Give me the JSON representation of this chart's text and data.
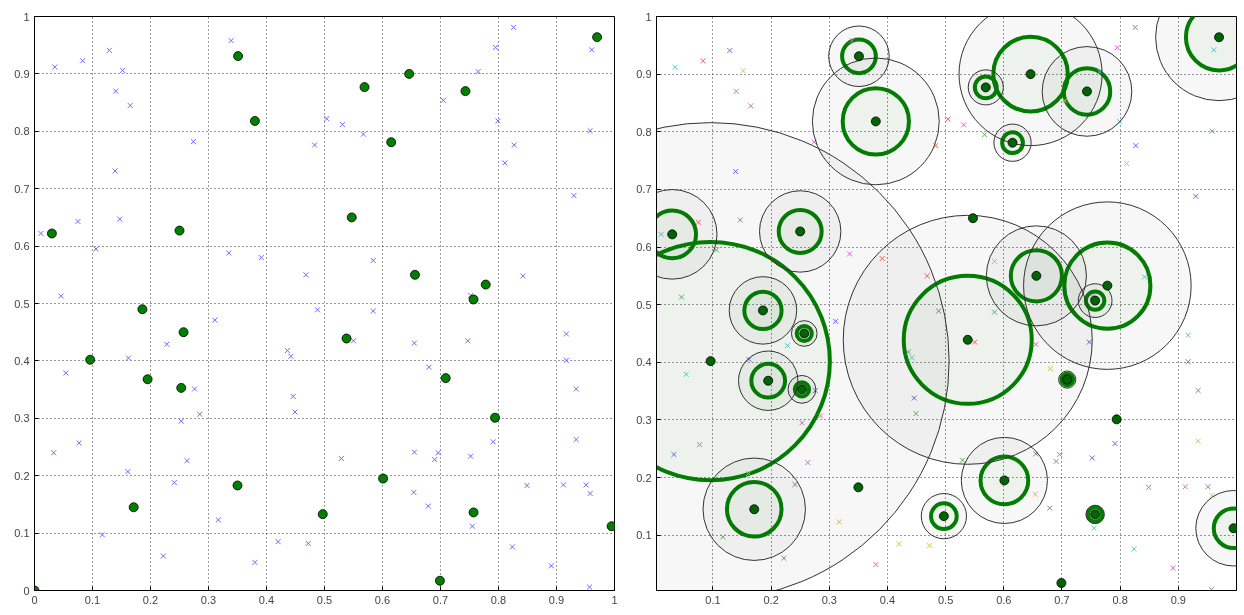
{
  "chart_data": [
    {
      "type": "scatter",
      "xlim": [
        0,
        1
      ],
      "ylim": [
        0,
        1
      ],
      "xticks": [
        0,
        0.1,
        0.2,
        0.3,
        0.4,
        0.5,
        0.6,
        0.7,
        0.8,
        0.9,
        1
      ],
      "yticks": [
        0,
        0.1,
        0.2,
        0.3,
        0.4,
        0.5,
        0.6,
        0.7,
        0.8,
        0.9,
        1
      ],
      "grid": true,
      "series": [
        {
          "color": "#6b6bff",
          "marker": "cross",
          "x": [
            0.339,
            0.129,
            0.083,
            0.035,
            0.152,
            0.14,
            0.165,
            0.504,
            0.274,
            0.483,
            0.139,
            0.075,
            0.147,
            0.011,
            0.106,
            0.335,
            0.391,
            0.468,
            0.046,
            0.826,
            0.795,
            0.961,
            0.765,
            0.705,
            0.531,
            0.799,
            0.567,
            0.958,
            0.827,
            0.811,
            0.93,
            0.584,
            0.842,
            0.752,
            0.488,
            0.311,
            0.228,
            0.162,
            0.436,
            0.442,
            0.054,
            0.276,
            0.446,
            0.449,
            0.285,
            0.253,
            0.077,
            0.033,
            0.263,
            0.161,
            0.241,
            0.317,
            0.117,
            0.42,
            0.472,
            0.222,
            0.38,
            0.584,
            0.55,
            0.655,
            0.747,
            0.917,
            0.917,
            0.68,
            0.934,
            0.934,
            0.791,
            0.529,
            0.655,
            0.696,
            0.69,
            0.752,
            0.849,
            0.912,
            0.951,
            0.958,
            0.654,
            0.679,
            0.755,
            0.824,
            0.891,
            0.957
          ],
          "values": [
            0.958,
            0.941,
            0.923,
            0.912,
            0.906,
            0.87,
            0.845,
            0.822,
            0.782,
            0.776,
            0.731,
            0.643,
            0.647,
            0.622,
            0.595,
            0.588,
            0.58,
            0.55,
            0.513,
            0.981,
            0.946,
            0.942,
            0.904,
            0.854,
            0.812,
            0.818,
            0.795,
            0.801,
            0.776,
            0.745,
            0.688,
            0.575,
            0.548,
            0.514,
            0.489,
            0.471,
            0.429,
            0.405,
            0.418,
            0.408,
            0.379,
            0.351,
            0.338,
            0.311,
            0.307,
            0.295,
            0.257,
            0.24,
            0.226,
            0.207,
            0.188,
            0.123,
            0.097,
            0.085,
            0.082,
            0.06,
            0.049,
            0.487,
            0.435,
            0.431,
            0.435,
            0.447,
            0.401,
            0.389,
            0.351,
            0.263,
            0.259,
            0.23,
            0.241,
            0.24,
            0.228,
            0.234,
            0.183,
            0.184,
            0.184,
            0.169,
            0.171,
            0.147,
            0.112,
            0.076,
            0.043,
            0.006
          ]
        },
        {
          "color": "#007f00",
          "marker": "circle",
          "x": [
            0.351,
            0.38,
            0.03,
            0.25,
            0.97,
            0.646,
            0.569,
            0.743,
            0.615,
            0.547,
            0.656,
            0.778,
            0.757,
            0.186,
            0.257,
            0.096,
            0.195,
            0.253,
            0.35,
            0.171,
            0.497,
            0,
            0.538,
            0.709,
            0.794,
            0.601,
            0.757,
            0.995,
            0.699
          ],
          "values": [
            0.931,
            0.818,
            0.622,
            0.627,
            0.964,
            0.9,
            0.877,
            0.87,
            0.781,
            0.65,
            0.55,
            0.533,
            0.507,
            0.49,
            0.45,
            0.402,
            0.368,
            0.353,
            0.183,
            0.145,
            0.133,
            0,
            0.439,
            0.37,
            0.301,
            0.195,
            0.136,
            0.112,
            0.017
          ]
        }
      ]
    },
    {
      "type": "scatter",
      "xlim": [
        0.003,
        1
      ],
      "ylim": [
        0.004,
        1
      ],
      "xticks": [
        0.1,
        0.2,
        0.3,
        0.4,
        0.5,
        0.6,
        0.7,
        0.8,
        0.9
      ],
      "yticks": [
        0.1,
        0.2,
        0.3,
        0.4,
        0.5,
        0.6,
        0.7,
        0.8,
        0.9,
        1
      ],
      "grid": true,
      "series": [
        {
          "marker": "cross",
          "x": [
            0.339,
            0.129,
            0.083,
            0.035,
            0.152,
            0.14,
            0.165,
            0.504,
            0.274,
            0.483,
            0.139,
            0.075,
            0.147,
            0.011,
            0.106,
            0.335,
            0.391,
            0.468,
            0.046,
            0.826,
            0.795,
            0.961,
            0.765,
            0.705,
            0.531,
            0.799,
            0.567,
            0.958,
            0.827,
            0.811,
            0.93,
            0.584,
            0.842,
            0.752,
            0.488,
            0.311,
            0.228,
            0.162,
            0.436,
            0.442,
            0.054,
            0.276,
            0.446,
            0.449,
            0.285,
            0.253,
            0.077,
            0.033,
            0.263,
            0.161,
            0.241,
            0.317,
            0.117,
            0.42,
            0.472,
            0.222,
            0.38,
            0.584,
            0.55,
            0.655,
            0.747,
            0.917,
            0.917,
            0.68,
            0.934,
            0.934,
            0.791,
            0.529,
            0.655,
            0.696,
            0.69,
            0.752,
            0.849,
            0.912,
            0.951,
            0.958,
            0.654,
            0.679,
            0.755,
            0.824,
            0.891,
            0.957
          ],
          "values": [
            0.958,
            0.941,
            0.923,
            0.912,
            0.906,
            0.87,
            0.845,
            0.822,
            0.782,
            0.776,
            0.731,
            0.643,
            0.647,
            0.622,
            0.595,
            0.588,
            0.58,
            0.55,
            0.513,
            0.981,
            0.946,
            0.942,
            0.904,
            0.854,
            0.812,
            0.818,
            0.795,
            0.801,
            0.776,
            0.745,
            0.688,
            0.575,
            0.548,
            0.514,
            0.489,
            0.471,
            0.429,
            0.405,
            0.418,
            0.408,
            0.379,
            0.351,
            0.338,
            0.311,
            0.307,
            0.295,
            0.257,
            0.24,
            0.226,
            0.207,
            0.188,
            0.123,
            0.097,
            0.085,
            0.082,
            0.06,
            0.049,
            0.487,
            0.435,
            0.431,
            0.435,
            0.447,
            0.401,
            0.389,
            0.351,
            0.263,
            0.259,
            0.23,
            0.241,
            0.24,
            0.228,
            0.234,
            0.183,
            0.184,
            0.184,
            0.169,
            0.171,
            0.147,
            0.112,
            0.076,
            0.043,
            0.006
          ],
          "colors": [
            "#dd66dd",
            "#6666ff",
            "#ff6666",
            "#55cccc",
            "#cccc55",
            "#dd66dd",
            "#ff6666",
            "#ff6666",
            "#dd66dd",
            "#ff6666",
            "#6666ff",
            "#ff6666",
            "#66aa66",
            "#55cccc",
            "#66aa66",
            "#dd66dd",
            "#ff6666",
            "#ff6666",
            "#66aa66",
            "#888888",
            "#dd66dd",
            "#55cccc",
            "#55cccc",
            "#cccc55",
            "#dd66dd",
            "#55cccc",
            "#66aa66",
            "#66aa66",
            "#6666ff",
            "#cccc55",
            "#6666ff",
            "#cccc55",
            "#55cccc",
            "#888888",
            "#888888",
            "#6666ff",
            "#55cccc",
            "#6666ff",
            "#66aa66",
            "#55cccc",
            "#55cccc",
            "#6666ff",
            "#6666ff",
            "#66aa66",
            "#dd66dd",
            "#dd66dd",
            "#ff6666",
            "#6666ff",
            "#dd66dd",
            "#cccc55",
            "#888888",
            "#cccc55",
            "#66aa66",
            "#cccc55",
            "#cccc55",
            "#888888",
            "#ff6666",
            "#66aa66",
            "#ff6666",
            "#ff6666",
            "#6666ff",
            "#55cccc",
            "#888888",
            "#cccc55",
            "#888888",
            "#cccc55",
            "#6666ff",
            "#66aa66",
            "#888888",
            "#dd66dd",
            "#888888",
            "#6666ff",
            "#dd66dd",
            "#dd66dd",
            "#888888",
            "#cccc55",
            "#cccc55",
            "#888888",
            "#55cccc",
            "#55cccc",
            "#dd66dd",
            "#66aa66"
          ]
        },
        {
          "type": "bubble",
          "color": "#333333",
          "x": [
            0.351,
            0.38,
            0.646,
            0.569,
            0.743,
            0.615,
            0.97,
            0.03,
            0.25,
            0.656,
            0.778,
            0.757,
            0.538,
            0.186,
            0.257,
            0.195,
            0.253,
            0.096,
            0.171,
            0.497,
            0.601,
            0.709,
            0.757,
            0.995
          ],
          "values": [
            0.931,
            0.818,
            0.9,
            0.877,
            0.87,
            0.781,
            0.964,
            0.622,
            0.627,
            0.55,
            0.533,
            0.507,
            0.439,
            0.49,
            0.45,
            0.368,
            0.353,
            0.402,
            0.145,
            0.133,
            0.195,
            0.37,
            0.136,
            0.112
          ],
          "sizes": [
            0.0161,
            0.0707,
            0.09,
            0.0054,
            0.0353,
            0.0061,
            0.0707,
            0.0353,
            0.0291,
            0.044,
            0.1234,
            0.005,
            0.2724,
            0.02,
            0.0029,
            0.0155,
            0.0034,
            1,
            0.0461,
            0.009,
            0.0326,
            0.0013,
            0.0015,
            0.0251
          ]
        },
        {
          "type": "bubble",
          "color": "#008000",
          "x": [
            0.351,
            0.38,
            0.646,
            0.569,
            0.743,
            0.615,
            0.97,
            0.03,
            0.25,
            0.656,
            0.778,
            0.757,
            0.538,
            0.186,
            0.257,
            0.195,
            0.253,
            0.096,
            0.171,
            0.497,
            0.601,
            0.709,
            0.757,
            0.995
          ],
          "values": [
            0.931,
            0.818,
            0.9,
            0.877,
            0.87,
            0.781,
            0.964,
            0.622,
            0.627,
            0.55,
            0.533,
            0.507,
            0.439,
            0.49,
            0.45,
            0.368,
            0.353,
            0.402,
            0.145,
            0.133,
            0.195,
            0.37,
            0.136,
            0.112
          ],
          "sizes": [
            0.005,
            0.0193,
            0.0244,
            0.0021,
            0.0095,
            0.0019,
            0.0193,
            0.01,
            0.0081,
            0.0115,
            0.0326,
            0.0015,
            0.072,
            0.0061,
            0.001,
            0.005,
            0.0009,
            0.25,
            0.0131,
            0.0029,
            0.01,
            0.0006,
            0.0009,
            0.0069
          ]
        },
        {
          "color": "#006400",
          "marker": "circle",
          "x": [
            0.351,
            0.38,
            0.03,
            0.25,
            0.97,
            0.646,
            0.569,
            0.743,
            0.615,
            0.547,
            0.656,
            0.778,
            0.757,
            0.186,
            0.257,
            0.096,
            0.195,
            0.253,
            0.35,
            0.171,
            0.497,
            0.538,
            0.709,
            0.794,
            0.601,
            0.757,
            0.995,
            0.699
          ],
          "values": [
            0.931,
            0.818,
            0.622,
            0.627,
            0.964,
            0.9,
            0.877,
            0.87,
            0.781,
            0.65,
            0.55,
            0.533,
            0.507,
            0.49,
            0.45,
            0.402,
            0.368,
            0.353,
            0.183,
            0.145,
            0.133,
            0.439,
            0.37,
            0.301,
            0.195,
            0.136,
            0.112,
            0.017
          ]
        }
      ]
    }
  ]
}
